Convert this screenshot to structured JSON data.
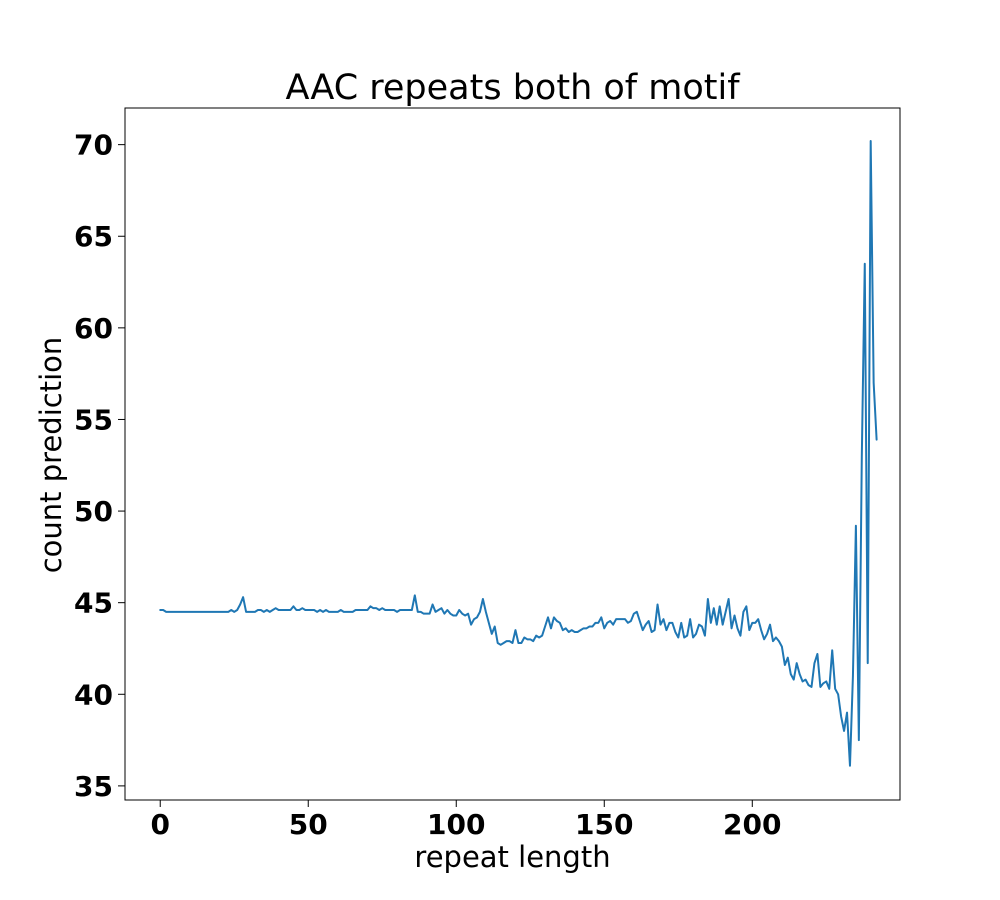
{
  "chart_data": {
    "type": "line",
    "title": "AAC repeats both of motif",
    "xlabel": "repeat length",
    "ylabel": "count prediction",
    "xlim": [
      -11.9,
      249.9
    ],
    "ylim": [
      34.23,
      72.0
    ],
    "x_ticks": [
      0,
      50,
      100,
      150,
      200
    ],
    "y_ticks": [
      35,
      40,
      45,
      50,
      55,
      60,
      65,
      70
    ],
    "x_tick_labels": [
      "0",
      "50",
      "100",
      "150",
      "200"
    ],
    "y_tick_labels": [
      "35",
      "40",
      "45",
      "50",
      "55",
      "60",
      "65",
      "70"
    ],
    "grid": false,
    "legend": "none",
    "series": [
      {
        "color": "#1f77b4",
        "x_start": 0,
        "x_step": 1,
        "values": [
          44.6,
          44.6,
          44.5,
          44.5,
          44.5,
          44.5,
          44.5,
          44.5,
          44.5,
          44.5,
          44.5,
          44.5,
          44.5,
          44.5,
          44.5,
          44.5,
          44.5,
          44.5,
          44.5,
          44.5,
          44.5,
          44.5,
          44.5,
          44.5,
          44.6,
          44.5,
          44.6,
          44.9,
          45.3,
          44.5,
          44.5,
          44.5,
          44.5,
          44.6,
          44.6,
          44.5,
          44.6,
          44.5,
          44.6,
          44.7,
          44.6,
          44.6,
          44.6,
          44.6,
          44.6,
          44.8,
          44.6,
          44.6,
          44.7,
          44.6,
          44.6,
          44.6,
          44.6,
          44.5,
          44.6,
          44.5,
          44.6,
          44.5,
          44.5,
          44.5,
          44.5,
          44.6,
          44.5,
          44.5,
          44.5,
          44.5,
          44.6,
          44.6,
          44.6,
          44.6,
          44.6,
          44.8,
          44.7,
          44.7,
          44.6,
          44.7,
          44.6,
          44.6,
          44.6,
          44.6,
          44.5,
          44.6,
          44.6,
          44.6,
          44.6,
          44.6,
          45.4,
          44.5,
          44.5,
          44.4,
          44.4,
          44.4,
          44.9,
          44.5,
          44.6,
          44.7,
          44.4,
          44.6,
          44.4,
          44.3,
          44.3,
          44.6,
          44.4,
          44.3,
          44.4,
          43.8,
          44.1,
          44.2,
          44.5,
          45.2,
          44.5,
          43.9,
          43.3,
          43.7,
          42.8,
          42.7,
          42.8,
          42.9,
          42.9,
          42.8,
          43.5,
          42.8,
          42.8,
          43.1,
          43.0,
          43.0,
          42.9,
          43.2,
          43.1,
          43.2,
          43.7,
          44.2,
          43.6,
          44.2,
          44.0,
          43.9,
          43.5,
          43.6,
          43.4,
          43.5,
          43.4,
          43.4,
          43.5,
          43.6,
          43.6,
          43.7,
          43.7,
          43.9,
          43.9,
          44.2,
          43.6,
          43.9,
          44.0,
          43.8,
          44.1,
          44.1,
          44.1,
          44.1,
          43.9,
          44.0,
          44.4,
          44.5,
          44.0,
          43.5,
          43.8,
          44.0,
          43.4,
          43.5,
          44.9,
          43.8,
          44.1,
          43.5,
          43.9,
          43.9,
          43.4,
          43.1,
          43.9,
          43.1,
          43.2,
          44.1,
          43.1,
          43.3,
          43.8,
          43.7,
          43.2,
          45.2,
          43.9,
          44.7,
          43.8,
          44.8,
          43.8,
          44.5,
          45.2,
          43.6,
          44.3,
          43.6,
          43.2,
          44.5,
          44.8,
          43.5,
          43.9,
          43.9,
          44.1,
          43.5,
          43.0,
          43.3,
          43.8,
          42.9,
          43.1,
          42.9,
          42.6,
          41.6,
          42.0,
          41.1,
          40.8,
          41.7,
          41.1,
          40.7,
          40.8,
          40.5,
          40.4,
          41.7,
          42.2,
          40.4,
          40.6,
          40.7,
          40.3,
          42.4,
          40.3,
          40.0,
          38.8,
          38.0,
          39.0,
          36.1,
          41.0,
          49.2,
          37.5,
          53.0,
          63.5,
          41.7,
          70.2,
          57.0,
          53.9
        ]
      }
    ]
  }
}
